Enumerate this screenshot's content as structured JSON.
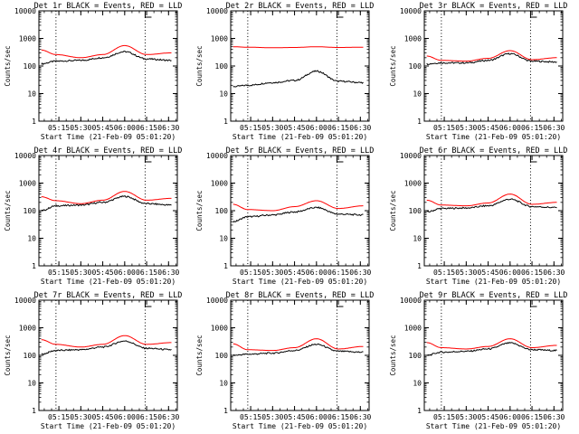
{
  "page": {
    "time_ticks": [
      "05:15",
      "05:30",
      "05:45",
      "06:00",
      "06:15",
      "06:30"
    ],
    "y_ticks": [
      "1",
      "10",
      "100",
      "1000",
      "10000"
    ],
    "ylabel": "Counts/sec",
    "xlabel": "Start Time (21-Feb-09 05:01:20)",
    "colors": {
      "events": "#000000",
      "lld": "#ff0000",
      "axes": "#000000"
    }
  },
  "chart_data": [
    {
      "type": "line",
      "title": "Det 1r BLACK = Events, RED = LLD",
      "xlabel": "Start Time (21-Feb-09 05:01:20)",
      "ylabel": "Counts/sec",
      "yscale": "log",
      "ylim": [
        1,
        10000
      ],
      "x_ticks": [
        "05:15",
        "05:30",
        "05:45",
        "06:00",
        "06:15",
        "06:30"
      ],
      "dotted_time_markers": [
        "05:13",
        "06:14"
      ],
      "x": [
        "05:03",
        "05:13",
        "05:30",
        "05:45",
        "06:00",
        "06:15",
        "06:32"
      ],
      "series": [
        {
          "name": "Events",
          "color": "#000000",
          "values": [
            120,
            150,
            160,
            200,
            330,
            180,
            160
          ]
        },
        {
          "name": "LLD",
          "color": "#ff0000",
          "values": [
            380,
            260,
            200,
            260,
            550,
            260,
            300
          ]
        }
      ]
    },
    {
      "type": "line",
      "title": "Det 2r BLACK = Events, RED = LLD",
      "xlabel": "Start Time (21-Feb-09 05:01:20)",
      "ylabel": "Counts/sec",
      "yscale": "log",
      "ylim": [
        1,
        10000
      ],
      "x_ticks": [
        "05:15",
        "05:30",
        "05:45",
        "06:00",
        "06:15",
        "06:30"
      ],
      "dotted_time_markers": [
        "05:13",
        "06:14"
      ],
      "x": [
        "05:03",
        "05:13",
        "05:30",
        "05:45",
        "06:00",
        "06:15",
        "06:32"
      ],
      "series": [
        {
          "name": "Events",
          "color": "#000000",
          "values": [
            18,
            20,
            25,
            30,
            65,
            28,
            25
          ]
        },
        {
          "name": "LLD",
          "color": "#ff0000",
          "values": [
            500,
            480,
            460,
            470,
            500,
            470,
            480
          ]
        }
      ]
    },
    {
      "type": "line",
      "title": "Det 3r BLACK = Events, RED = LLD",
      "xlabel": "Start Time (21-Feb-09 05:01:20)",
      "ylabel": "Counts/sec",
      "yscale": "log",
      "ylim": [
        1,
        10000
      ],
      "x_ticks": [
        "05:15",
        "05:30",
        "05:45",
        "06:00",
        "06:15",
        "06:30"
      ],
      "dotted_time_markers": [
        "05:13",
        "06:14"
      ],
      "x": [
        "05:03",
        "05:13",
        "05:30",
        "05:45",
        "06:00",
        "06:15",
        "06:32"
      ],
      "series": [
        {
          "name": "Events",
          "color": "#000000",
          "values": [
            120,
            130,
            130,
            160,
            280,
            150,
            140
          ]
        },
        {
          "name": "LLD",
          "color": "#ff0000",
          "values": [
            230,
            160,
            150,
            190,
            360,
            170,
            200
          ]
        }
      ]
    },
    {
      "type": "line",
      "title": "Det 4r BLACK = Events, RED = LLD",
      "xlabel": "Start Time (21-Feb-09 05:01:20)",
      "ylabel": "Counts/sec",
      "yscale": "log",
      "ylim": [
        1,
        10000
      ],
      "x_ticks": [
        "05:15",
        "05:30",
        "05:45",
        "06:00",
        "06:15",
        "06:30"
      ],
      "dotted_time_markers": [
        "05:13",
        "06:14"
      ],
      "x": [
        "05:03",
        "05:13",
        "05:30",
        "05:45",
        "06:00",
        "06:15",
        "06:32"
      ],
      "series": [
        {
          "name": "Events",
          "color": "#000000",
          "values": [
            100,
            150,
            160,
            200,
            330,
            180,
            160
          ]
        },
        {
          "name": "LLD",
          "color": "#ff0000",
          "values": [
            320,
            230,
            180,
            240,
            500,
            240,
            280
          ]
        }
      ]
    },
    {
      "type": "line",
      "title": "Det 5r BLACK = Events, RED = LLD",
      "xlabel": "Start Time (21-Feb-09 05:01:20)",
      "ylabel": "Counts/sec",
      "yscale": "log",
      "ylim": [
        1,
        10000
      ],
      "x_ticks": [
        "05:15",
        "05:30",
        "05:45",
        "06:00",
        "06:15",
        "06:30"
      ],
      "dotted_time_markers": [
        "05:13",
        "06:14"
      ],
      "x": [
        "05:03",
        "05:13",
        "05:30",
        "05:45",
        "06:00",
        "06:15",
        "06:32"
      ],
      "series": [
        {
          "name": "Events",
          "color": "#000000",
          "values": [
            40,
            60,
            70,
            90,
            130,
            75,
            70
          ]
        },
        {
          "name": "LLD",
          "color": "#ff0000",
          "values": [
            170,
            110,
            100,
            140,
            230,
            120,
            150
          ]
        }
      ]
    },
    {
      "type": "line",
      "title": "Det 6r BLACK = Events, RED = LLD",
      "xlabel": "Start Time (21-Feb-09 05:01:20)",
      "ylabel": "Counts/sec",
      "yscale": "log",
      "ylim": [
        1,
        10000
      ],
      "x_ticks": [
        "05:15",
        "05:30",
        "05:45",
        "06:00",
        "06:15",
        "06:30"
      ],
      "dotted_time_markers": [
        "05:13",
        "06:14"
      ],
      "x": [
        "05:03",
        "05:13",
        "05:30",
        "05:45",
        "06:00",
        "06:15",
        "06:32"
      ],
      "series": [
        {
          "name": "Events",
          "color": "#000000",
          "values": [
            90,
            120,
            125,
            150,
            260,
            140,
            130
          ]
        },
        {
          "name": "LLD",
          "color": "#ff0000",
          "values": [
            240,
            160,
            150,
            190,
            400,
            170,
            200
          ]
        }
      ]
    },
    {
      "type": "line",
      "title": "Det 7r BLACK = Events, RED = LLD",
      "xlabel": "Start Time (21-Feb-09 05:01:20)",
      "ylabel": "Counts/sec",
      "yscale": "log",
      "ylim": [
        1,
        10000
      ],
      "x_ticks": [
        "05:15",
        "05:30",
        "05:45",
        "06:00",
        "06:15",
        "06:30"
      ],
      "dotted_time_markers": [
        "05:13",
        "06:14"
      ],
      "x": [
        "05:03",
        "05:13",
        "05:30",
        "05:45",
        "06:00",
        "06:15",
        "06:32"
      ],
      "series": [
        {
          "name": "Events",
          "color": "#000000",
          "values": [
            110,
            150,
            160,
            200,
            330,
            180,
            160
          ]
        },
        {
          "name": "LLD",
          "color": "#ff0000",
          "values": [
            370,
            250,
            200,
            250,
            520,
            250,
            290
          ]
        }
      ]
    },
    {
      "type": "line",
      "title": "Det 8r BLACK = Events, RED = LLD",
      "xlabel": "Start Time (21-Feb-09 05:01:20)",
      "ylabel": "Counts/sec",
      "yscale": "log",
      "ylim": [
        1,
        10000
      ],
      "x_ticks": [
        "05:15",
        "05:30",
        "05:45",
        "06:00",
        "06:15",
        "06:30"
      ],
      "dotted_time_markers": [
        "05:13",
        "06:14"
      ],
      "x": [
        "05:03",
        "05:13",
        "05:30",
        "05:45",
        "06:00",
        "06:15",
        "06:32"
      ],
      "series": [
        {
          "name": "Events",
          "color": "#000000",
          "values": [
            100,
            110,
            120,
            150,
            250,
            140,
            130
          ]
        },
        {
          "name": "LLD",
          "color": "#ff0000",
          "values": [
            260,
            160,
            150,
            190,
            400,
            170,
            210
          ]
        }
      ]
    },
    {
      "type": "line",
      "title": "Det 9r BLACK = Events, RED = LLD",
      "xlabel": "Start Time (21-Feb-09 05:01:20)",
      "ylabel": "Counts/sec",
      "yscale": "log",
      "ylim": [
        1,
        10000
      ],
      "x_ticks": [
        "05:15",
        "05:30",
        "05:45",
        "06:00",
        "06:15",
        "06:30"
      ],
      "dotted_time_markers": [
        "05:13",
        "06:14"
      ],
      "x": [
        "05:03",
        "05:13",
        "05:30",
        "05:45",
        "06:00",
        "06:15",
        "06:32"
      ],
      "series": [
        {
          "name": "Events",
          "color": "#000000",
          "values": [
            100,
            130,
            140,
            170,
            280,
            160,
            150
          ]
        },
        {
          "name": "LLD",
          "color": "#ff0000",
          "values": [
            290,
            190,
            170,
            210,
            400,
            190,
            230
          ]
        }
      ]
    }
  ]
}
